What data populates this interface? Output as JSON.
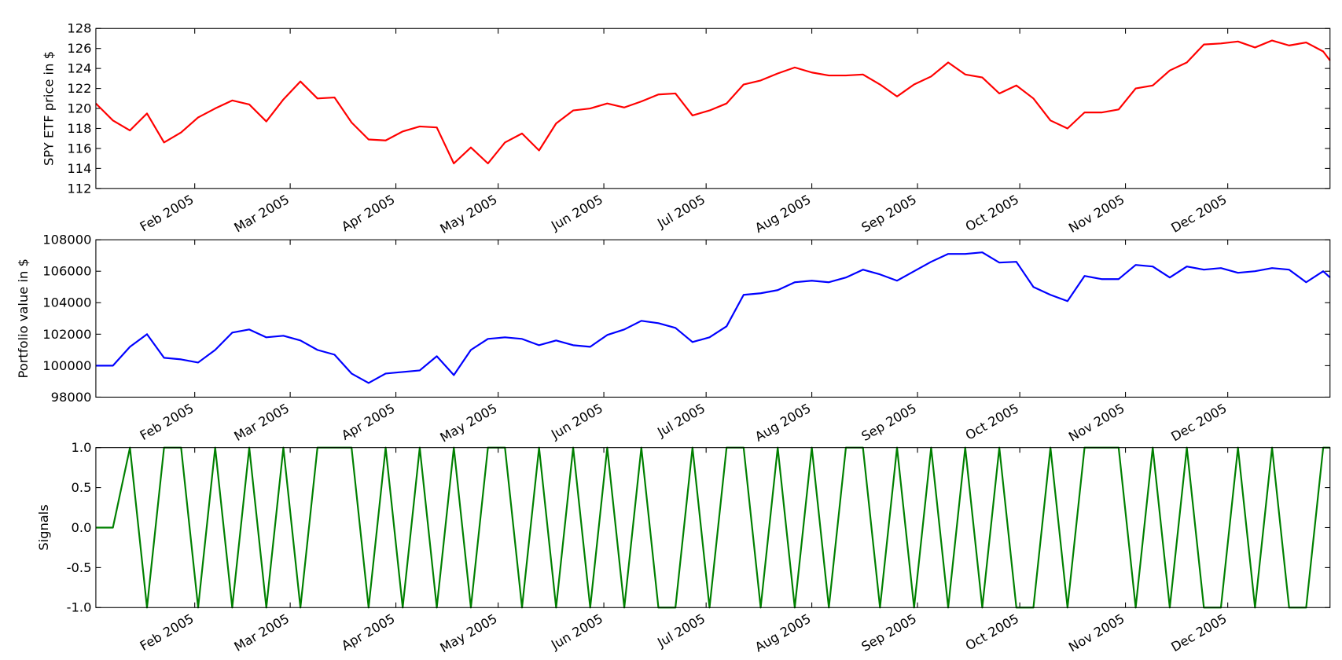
{
  "chart_data": [
    {
      "type": "line",
      "ylabel": "SPY ETF price in $",
      "color": "#ff0000",
      "x": [
        3,
        8,
        13,
        18,
        23,
        28,
        33,
        38,
        43,
        48,
        53,
        58,
        63,
        68,
        73,
        78,
        83,
        88,
        93,
        98,
        103,
        108,
        113,
        118,
        123,
        128,
        133,
        138,
        143,
        148,
        153,
        158,
        163,
        168,
        173,
        178,
        183,
        188,
        193,
        198,
        203,
        208,
        213,
        218,
        223,
        228,
        233,
        238,
        243,
        248,
        253,
        258,
        263,
        268,
        273,
        278,
        283,
        288,
        293,
        298,
        303,
        308,
        313,
        318,
        323,
        328,
        333,
        338,
        343,
        348,
        353,
        358,
        363,
        365
      ],
      "values": [
        120.5,
        118.8,
        117.8,
        119.5,
        116.6,
        117.6,
        119.1,
        120.0,
        120.8,
        120.4,
        118.7,
        120.9,
        122.7,
        121.0,
        121.1,
        118.6,
        116.9,
        116.8,
        117.7,
        118.2,
        118.1,
        114.5,
        116.1,
        114.5,
        116.6,
        117.5,
        115.8,
        118.5,
        119.8,
        120.0,
        120.5,
        120.1,
        120.7,
        121.4,
        121.5,
        119.3,
        119.8,
        120.5,
        122.4,
        122.8,
        123.5,
        124.1,
        123.6,
        123.3,
        123.3,
        123.4,
        122.4,
        121.2,
        122.4,
        123.2,
        124.6,
        123.4,
        123.1,
        121.5,
        122.3,
        121.0,
        118.8,
        118.0,
        119.6,
        119.6,
        119.9,
        122.0,
        122.3,
        123.8,
        124.6,
        126.4,
        126.5,
        126.7,
        126.1,
        126.8,
        126.3,
        126.6,
        125.7,
        124.8
      ],
      "xlim": [
        3,
        365
      ],
      "xticks": [
        {
          "value": 32,
          "label": "Feb 2005"
        },
        {
          "value": 60,
          "label": "Mar 2005"
        },
        {
          "value": 91,
          "label": "Apr 2005"
        },
        {
          "value": 121,
          "label": "May 2005"
        },
        {
          "value": 152,
          "label": "Jun 2005"
        },
        {
          "value": 182,
          "label": "Jul 2005"
        },
        {
          "value": 213,
          "label": "Aug 2005"
        },
        {
          "value": 244,
          "label": "Sep 2005"
        },
        {
          "value": 274,
          "label": "Oct 2005"
        },
        {
          "value": 305,
          "label": "Nov 2005"
        },
        {
          "value": 335,
          "label": "Dec 2005"
        }
      ],
      "ylim": [
        112,
        128
      ],
      "yticks": [
        112,
        114,
        116,
        118,
        120,
        122,
        124,
        126,
        128
      ]
    },
    {
      "type": "line",
      "ylabel": "Portfolio value in $",
      "color": "#0000ff",
      "x": [
        3,
        8,
        13,
        18,
        23,
        28,
        33,
        38,
        43,
        48,
        53,
        58,
        63,
        68,
        73,
        78,
        83,
        88,
        93,
        98,
        103,
        108,
        113,
        118,
        123,
        128,
        133,
        138,
        143,
        148,
        153,
        158,
        163,
        168,
        173,
        178,
        183,
        188,
        193,
        198,
        203,
        208,
        213,
        218,
        223,
        228,
        233,
        238,
        243,
        248,
        253,
        258,
        263,
        268,
        273,
        278,
        283,
        288,
        293,
        298,
        303,
        308,
        313,
        318,
        323,
        328,
        333,
        338,
        343,
        348,
        353,
        358,
        363,
        365
      ],
      "values": [
        100000,
        100000,
        101200,
        102000,
        100500,
        100400,
        100200,
        101000,
        102100,
        102300,
        101800,
        101900,
        101600,
        101000,
        100700,
        99500,
        98900,
        99500,
        99600,
        99700,
        100600,
        99400,
        101000,
        101700,
        101800,
        101700,
        101300,
        101600,
        101300,
        101200,
        101950,
        102300,
        102850,
        102700,
        102400,
        101500,
        101800,
        102500,
        104500,
        104600,
        104800,
        105300,
        105400,
        105300,
        105600,
        106100,
        105800,
        105400,
        106000,
        106600,
        107100,
        107100,
        107200,
        106550,
        106600,
        105000,
        104500,
        104100,
        105700,
        105500,
        105500,
        106400,
        106300,
        105600,
        106300,
        106100,
        106200,
        105900,
        106000,
        106200,
        106100,
        105300,
        106000,
        105600
      ],
      "xlim": [
        3,
        365
      ],
      "xticks": [
        {
          "value": 32,
          "label": "Feb 2005"
        },
        {
          "value": 60,
          "label": "Mar 2005"
        },
        {
          "value": 91,
          "label": "Apr 2005"
        },
        {
          "value": 121,
          "label": "May 2005"
        },
        {
          "value": 152,
          "label": "Jun 2005"
        },
        {
          "value": 182,
          "label": "Jul 2005"
        },
        {
          "value": 213,
          "label": "Aug 2005"
        },
        {
          "value": 244,
          "label": "Sep 2005"
        },
        {
          "value": 274,
          "label": "Oct 2005"
        },
        {
          "value": 305,
          "label": "Nov 2005"
        },
        {
          "value": 335,
          "label": "Dec 2005"
        }
      ],
      "ylim": [
        98000,
        108000
      ],
      "yticks": [
        98000,
        100000,
        102000,
        104000,
        106000,
        108000
      ]
    },
    {
      "type": "line",
      "ylabel": "Signals",
      "color": "#008000",
      "x": [
        3,
        8,
        13,
        18,
        23,
        28,
        33,
        38,
        43,
        48,
        53,
        58,
        63,
        68,
        73,
        78,
        83,
        88,
        93,
        98,
        103,
        108,
        113,
        118,
        123,
        128,
        133,
        138,
        143,
        148,
        153,
        158,
        163,
        168,
        173,
        178,
        183,
        188,
        193,
        198,
        203,
        208,
        213,
        218,
        223,
        228,
        233,
        238,
        243,
        248,
        253,
        258,
        263,
        268,
        273,
        278,
        283,
        288,
        293,
        298,
        303,
        308,
        313,
        318,
        323,
        328,
        333,
        338,
        343,
        348,
        353,
        358,
        363,
        365
      ],
      "values": [
        0,
        0,
        1,
        -1,
        1,
        1,
        -1,
        1,
        -1,
        1,
        -1,
        1,
        -1,
        1,
        1,
        1,
        -1,
        1,
        -1,
        1,
        -1,
        1,
        -1,
        1,
        1,
        -1,
        1,
        -1,
        1,
        -1,
        1,
        -1,
        1,
        -1,
        -1,
        1,
        -1,
        1,
        1,
        -1,
        1,
        -1,
        1,
        -1,
        1,
        1,
        -1,
        1,
        -1,
        1,
        -1,
        1,
        -1,
        1,
        -1,
        -1,
        1,
        -1,
        1,
        1,
        1,
        -1,
        1,
        -1,
        1,
        -1,
        -1,
        1,
        -1,
        1,
        -1,
        -1,
        1,
        1
      ],
      "xlim": [
        3,
        365
      ],
      "xticks": [
        {
          "value": 32,
          "label": "Feb 2005"
        },
        {
          "value": 60,
          "label": "Mar 2005"
        },
        {
          "value": 91,
          "label": "Apr 2005"
        },
        {
          "value": 121,
          "label": "May 2005"
        },
        {
          "value": 152,
          "label": "Jun 2005"
        },
        {
          "value": 182,
          "label": "Jul 2005"
        },
        {
          "value": 213,
          "label": "Aug 2005"
        },
        {
          "value": 244,
          "label": "Sep 2005"
        },
        {
          "value": 274,
          "label": "Oct 2005"
        },
        {
          "value": 305,
          "label": "Nov 2005"
        },
        {
          "value": 335,
          "label": "Dec 2005"
        }
      ],
      "ylim": [
        -1,
        1
      ],
      "yticks": [
        {
          "value": -1,
          "label": "-1.0"
        },
        {
          "value": -0.5,
          "label": "-0.5"
        },
        {
          "value": 0,
          "label": "0.0"
        },
        {
          "value": 0.5,
          "label": "0.5"
        },
        {
          "value": 1,
          "label": "1.0"
        }
      ]
    }
  ]
}
